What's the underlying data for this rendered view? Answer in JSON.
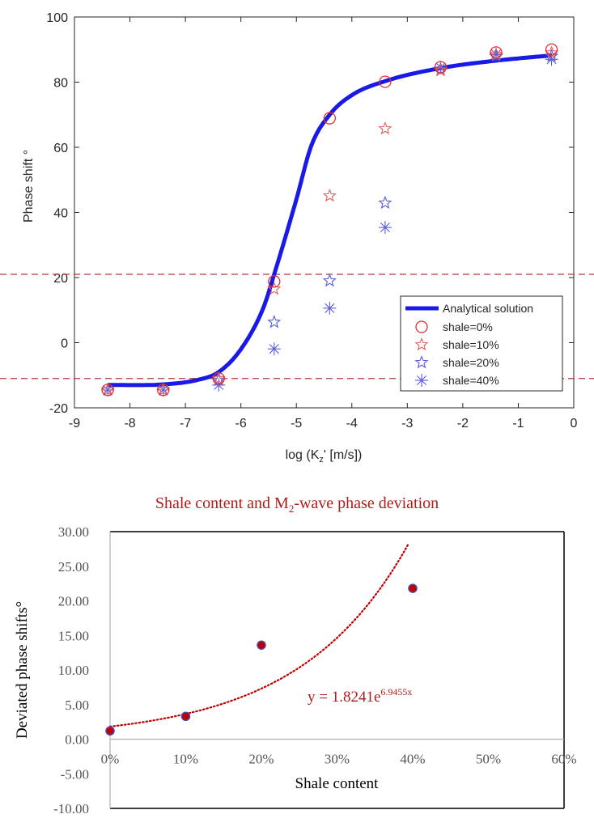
{
  "chart_data": [
    {
      "type": "scatter",
      "id": "phase-shift-vs-kz",
      "title": "",
      "xlabel_main": "log (K",
      "xlabel_sub": "z",
      "xlabel_tail": "' [m/s])",
      "ylabel": "Phase shift °",
      "xlim": [
        -9,
        0
      ],
      "ylim": [
        -20,
        100
      ],
      "xticks": [
        -9,
        -8,
        -7,
        -6,
        -5,
        -4,
        -3,
        -2,
        -1,
        0
      ],
      "yticks": [
        -20,
        0,
        20,
        40,
        60,
        80,
        100
      ],
      "grid": false,
      "legend_position": "bottom-right",
      "reference_lines": [
        {
          "orientation": "horizontal",
          "y": 21,
          "style": "dashed",
          "color": "#b03a3a"
        },
        {
          "orientation": "horizontal",
          "y": -11,
          "style": "dashed",
          "color": "#b03a3a"
        }
      ],
      "series": [
        {
          "name": "Analytical solution",
          "kind": "line",
          "color": "#1a1ae6",
          "x": [
            -8.4,
            -7.4,
            -6.8,
            -6.4,
            -6.0,
            -5.6,
            -5.4,
            -5.0,
            -4.73,
            -4.4,
            -4.0,
            -3.4,
            -2.4,
            -1.4,
            -0.4
          ],
          "y": [
            -13,
            -12.8,
            -11.5,
            -9,
            -2,
            10.5,
            21,
            44,
            60.5,
            70,
            76,
            80.3,
            84.3,
            86.6,
            88.2
          ]
        },
        {
          "name": "shale=0%",
          "kind": "marker",
          "marker": "circle",
          "color": "#e03030",
          "x": [
            -8.4,
            -7.4,
            -6.4,
            -5.4,
            -4.4,
            -3.4,
            -2.4,
            -1.4,
            -0.4
          ],
          "y": [
            -14.5,
            -14.5,
            -11,
            18.8,
            68.9,
            80.1,
            84.6,
            89.1,
            90
          ]
        },
        {
          "name": "shale=10%",
          "kind": "marker",
          "marker": "star",
          "color": "#e06060",
          "x": [
            -8.4,
            -7.4,
            -6.4,
            -5.4,
            -4.4,
            -3.4,
            -2.4,
            -1.4,
            -0.4
          ],
          "y": [
            -14.5,
            -14.5,
            -11,
            16.5,
            45.1,
            65.7,
            83.6,
            88.5,
            89
          ]
        },
        {
          "name": "shale=20%",
          "kind": "marker",
          "marker": "star",
          "color": "#5a5ae0",
          "x": [
            -8.4,
            -7.4,
            -6.4,
            -5.4,
            -4.4,
            -3.4,
            -2.4,
            -1.4,
            -0.4
          ],
          "y": [
            -14.5,
            -14.5,
            -11.5,
            6.3,
            19.0,
            42.9,
            84.0,
            88.0,
            88
          ]
        },
        {
          "name": "shale=40%",
          "kind": "marker",
          "marker": "asterisk",
          "color": "#5a5ae0",
          "x": [
            -8.4,
            -7.4,
            -6.4,
            -5.4,
            -4.4,
            -3.4,
            -2.4,
            -1.4,
            -0.4
          ],
          "y": [
            -14.5,
            -14.5,
            -13,
            -1.9,
            10.6,
            35.4,
            84.5,
            88.5,
            87
          ]
        }
      ]
    },
    {
      "type": "scatter",
      "id": "shale-vs-deviation",
      "title_main": "Shale content and M",
      "title_sub": "2",
      "title_tail": "-wave phase deviation",
      "xlabel": "Shale content",
      "ylabel": "Deviated phase shifts°",
      "xlim": [
        0,
        0.6
      ],
      "ylim": [
        -10,
        30
      ],
      "xticks": [
        0,
        0.1,
        0.2,
        0.3,
        0.4,
        0.5,
        0.6
      ],
      "xtick_labels": [
        "0%",
        "10%",
        "20%",
        "30%",
        "40%",
        "50%",
        "60%"
      ],
      "yticks": [
        -10,
        -5,
        0,
        5,
        10,
        15,
        20,
        25,
        30
      ],
      "ytick_labels": [
        "-10.00",
        "-5.00",
        "0.00",
        "5.00",
        "10.00",
        "15.00",
        "20.00",
        "25.00",
        "30.00"
      ],
      "grid": false,
      "series": [
        {
          "name": "Deviated phase shift",
          "kind": "marker",
          "marker": "dot",
          "color": "#c00000",
          "edge_color": "#4a4aa0",
          "x": [
            0,
            0.1,
            0.2,
            0.4
          ],
          "y": [
            1.2,
            3.3,
            13.6,
            21.8
          ]
        }
      ],
      "trendline": {
        "type": "exponential",
        "a": 1.8241,
        "b": 6.9455,
        "x_range": [
          0,
          0.395
        ],
        "style": "dotted",
        "color": "#c00000",
        "label_main": "y = 1.8241e",
        "label_sup": "6.9455x"
      }
    }
  ]
}
